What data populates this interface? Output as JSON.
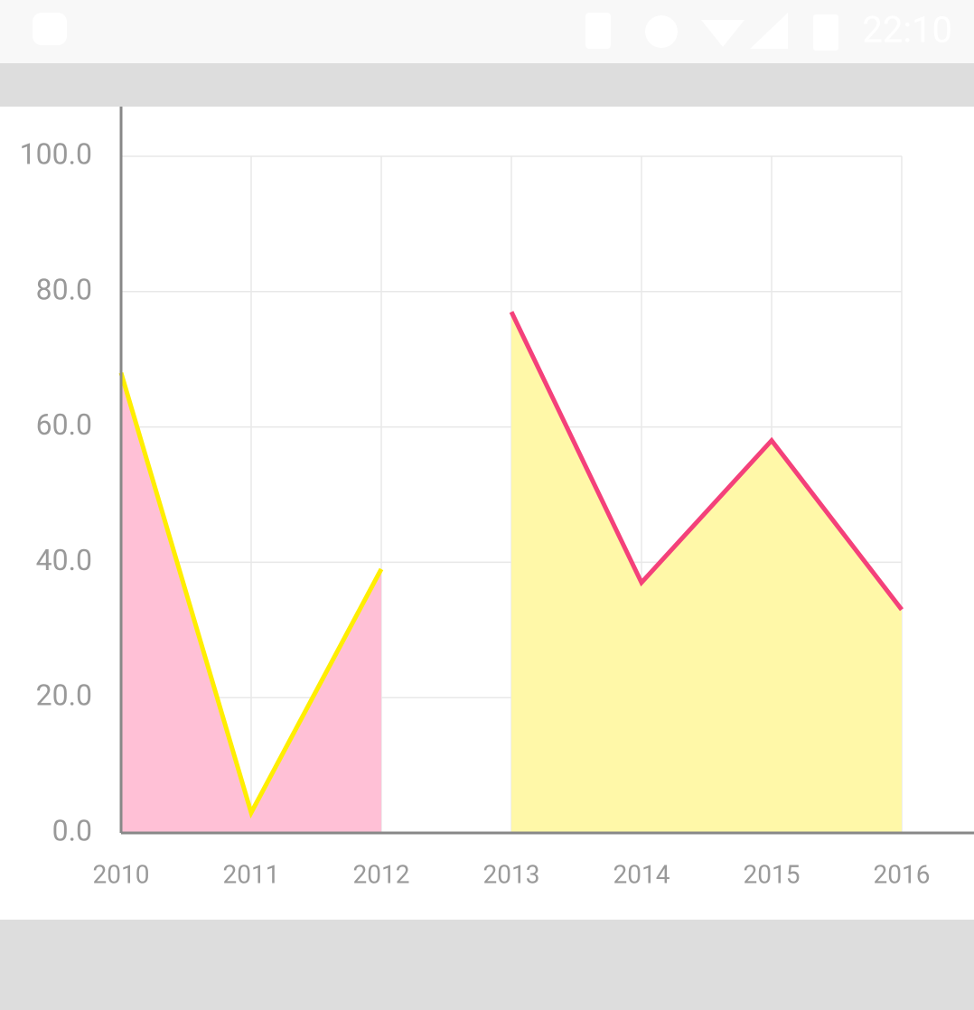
{
  "status_bar": {
    "time": "22:10"
  },
  "chart_data": {
    "type": "line",
    "x": [
      2010,
      2011,
      2012,
      2013,
      2014,
      2015,
      2016
    ],
    "xlim": [
      2010,
      2016
    ],
    "xticks": [
      2010,
      2011,
      2012,
      2013,
      2014,
      2015,
      2016
    ],
    "ylim": [
      0,
      100
    ],
    "yticks": [
      {
        "value": 0,
        "label": "0.0"
      },
      {
        "value": 20,
        "label": "20.0"
      },
      {
        "value": 40,
        "label": "40.0"
      },
      {
        "value": 60,
        "label": "60.0"
      },
      {
        "value": 80,
        "label": "80.0"
      },
      {
        "value": 100,
        "label": "100.0"
      }
    ],
    "grid": true,
    "series": [
      {
        "color": "#ffee00",
        "fill": "#ffc0d6",
        "values": [
          68,
          3,
          39,
          null,
          null,
          null,
          null
        ]
      },
      {
        "color": "#f4417a",
        "fill": "#fff8a8",
        "values": [
          null,
          null,
          null,
          77,
          37,
          58,
          33
        ]
      }
    ]
  }
}
